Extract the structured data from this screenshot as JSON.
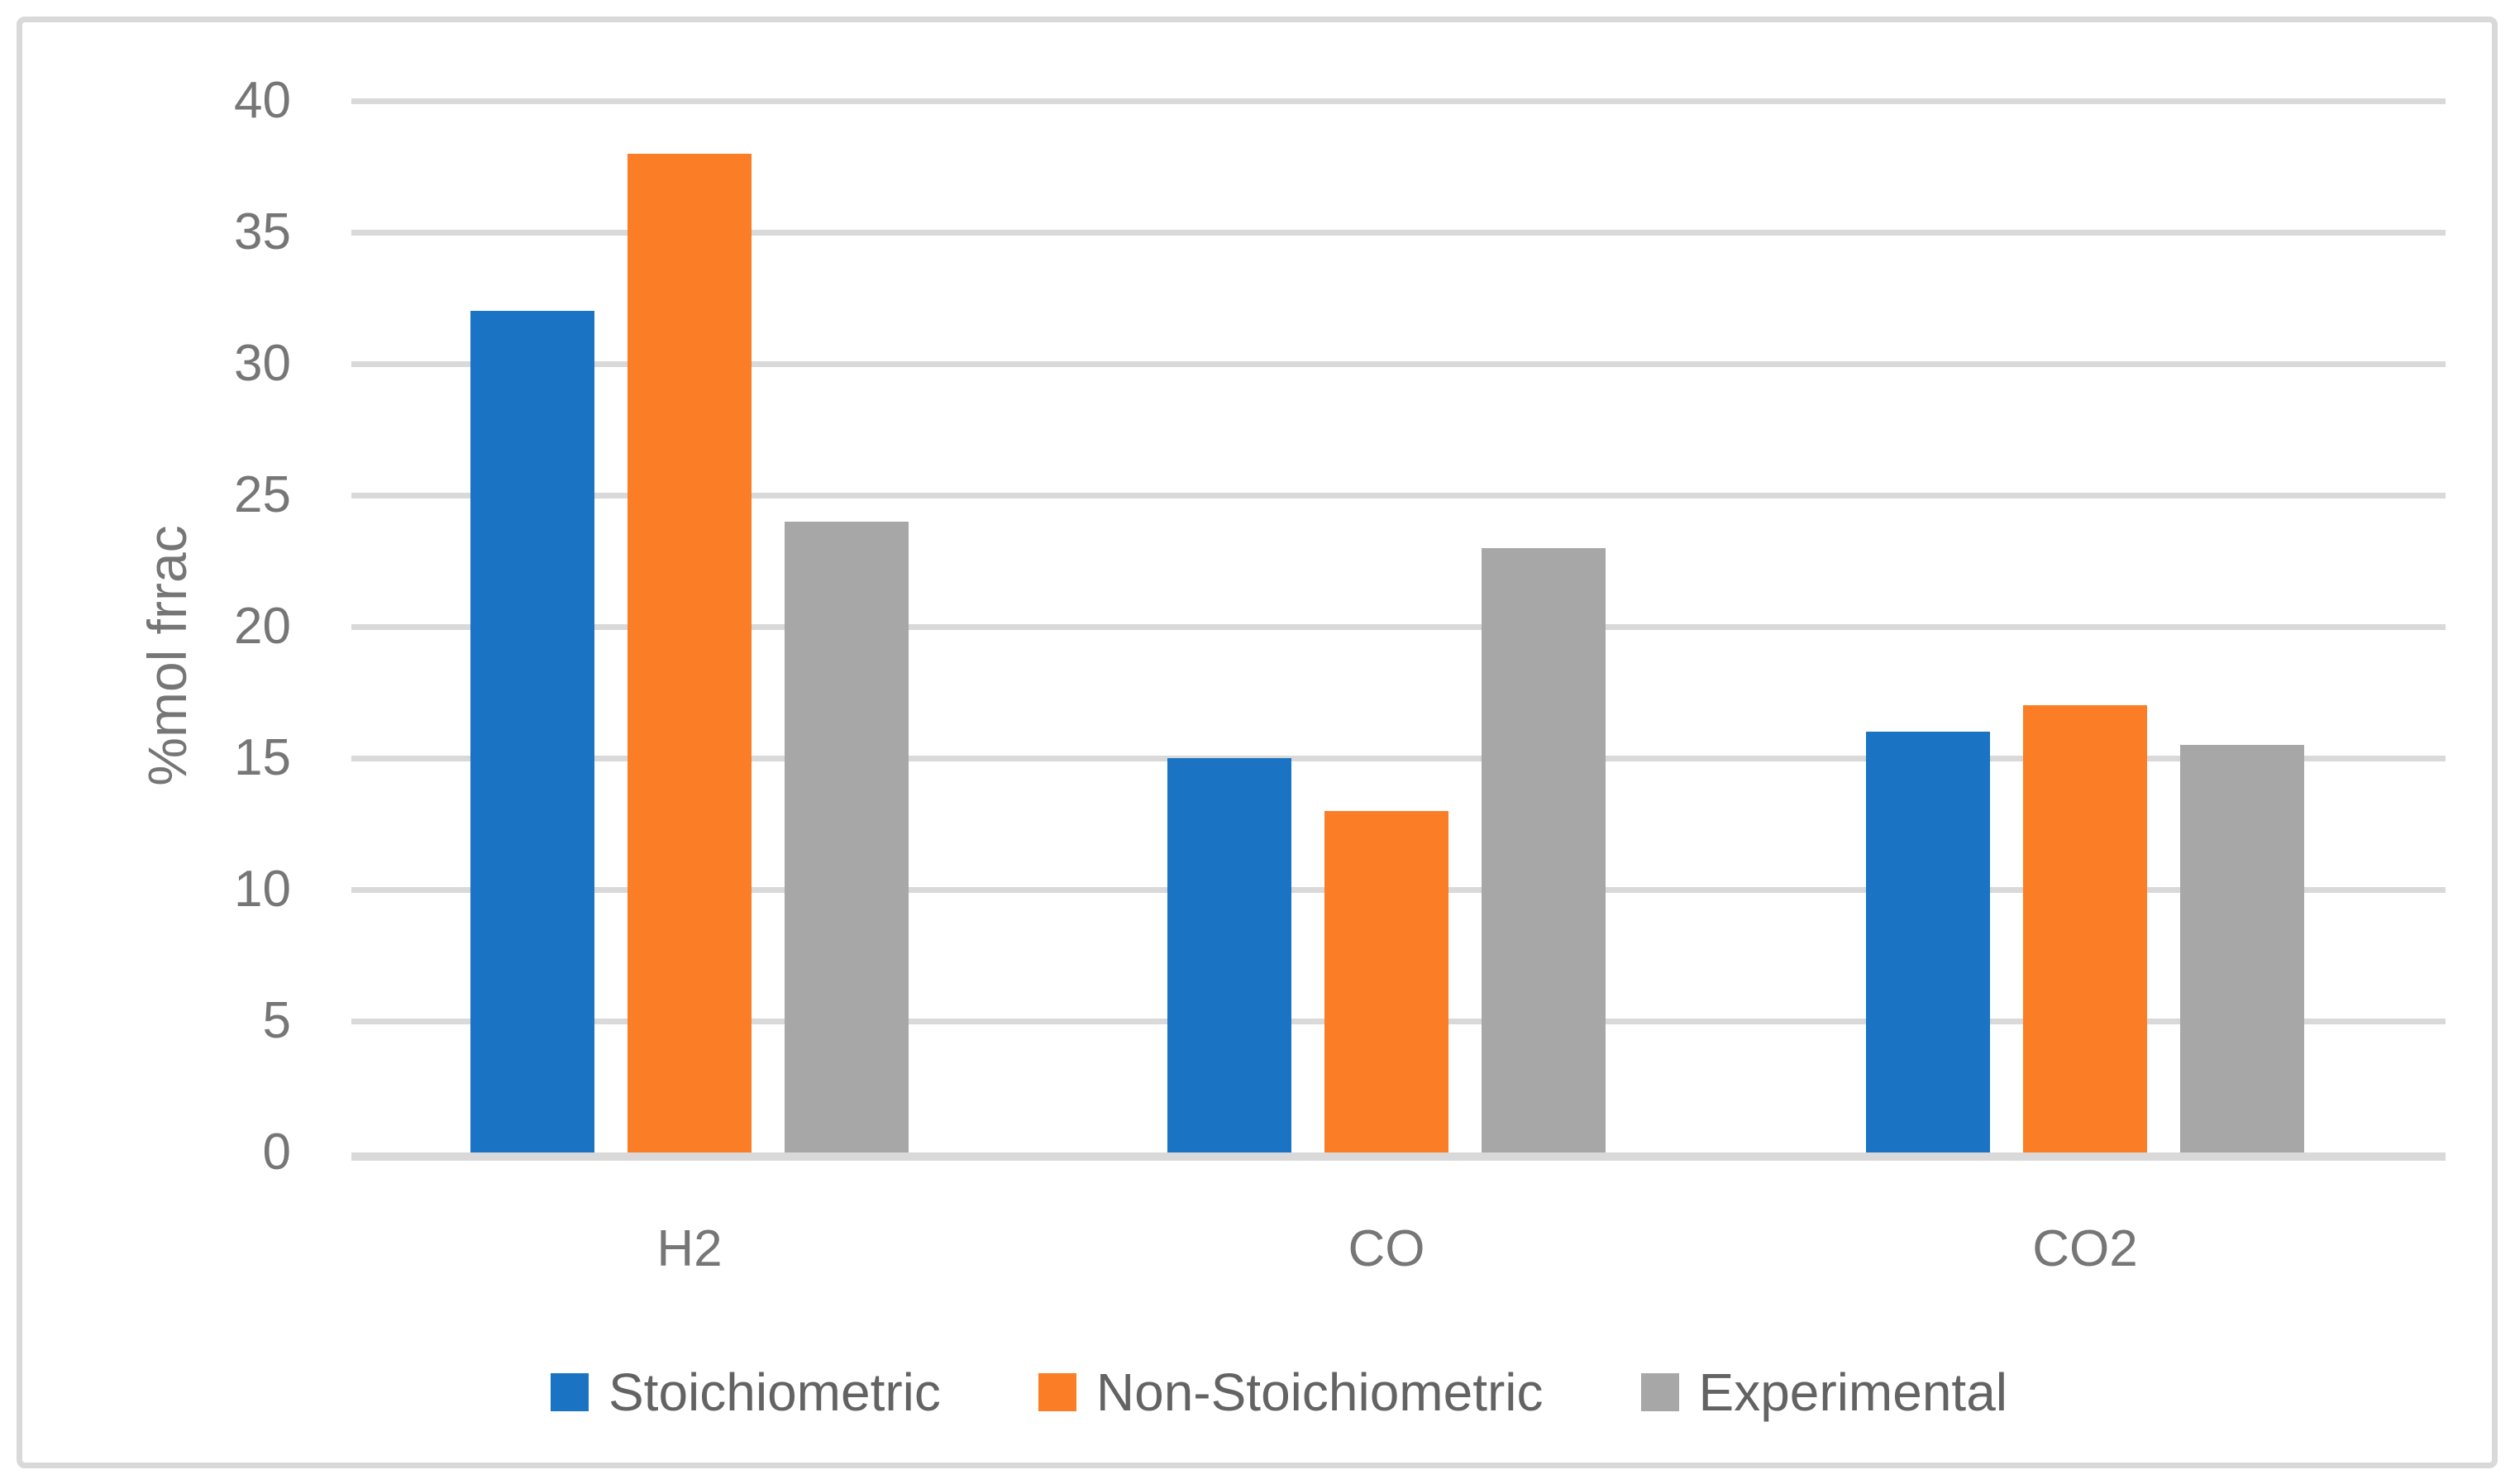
{
  "chart_data": {
    "type": "bar",
    "title": "",
    "ylabel": "%mol frrac",
    "xlabel": "",
    "categories": [
      "H2",
      "CO",
      "CO2"
    ],
    "series": [
      {
        "name": "Stoichiometric",
        "color": "#1B74C3",
        "values": [
          32,
          15,
          16
        ]
      },
      {
        "name": "Non-Stoichiometric",
        "color": "#FB7D25",
        "values": [
          38,
          13,
          17
        ]
      },
      {
        "name": "Experimental",
        "color": "#A7A7A7",
        "values": [
          24,
          23,
          15.5
        ]
      }
    ],
    "ylim": [
      0,
      40
    ],
    "yticks": [
      0,
      5,
      10,
      15,
      20,
      25,
      30,
      35,
      40
    ],
    "grid": true,
    "legend_position": "bottom",
    "background_color": "#FFFFFF",
    "frame_border_color": "#D9D9D9",
    "gridline_color": "#D9D9D9",
    "axis_text_color": "#767676",
    "legend_text_color": "#636363"
  }
}
